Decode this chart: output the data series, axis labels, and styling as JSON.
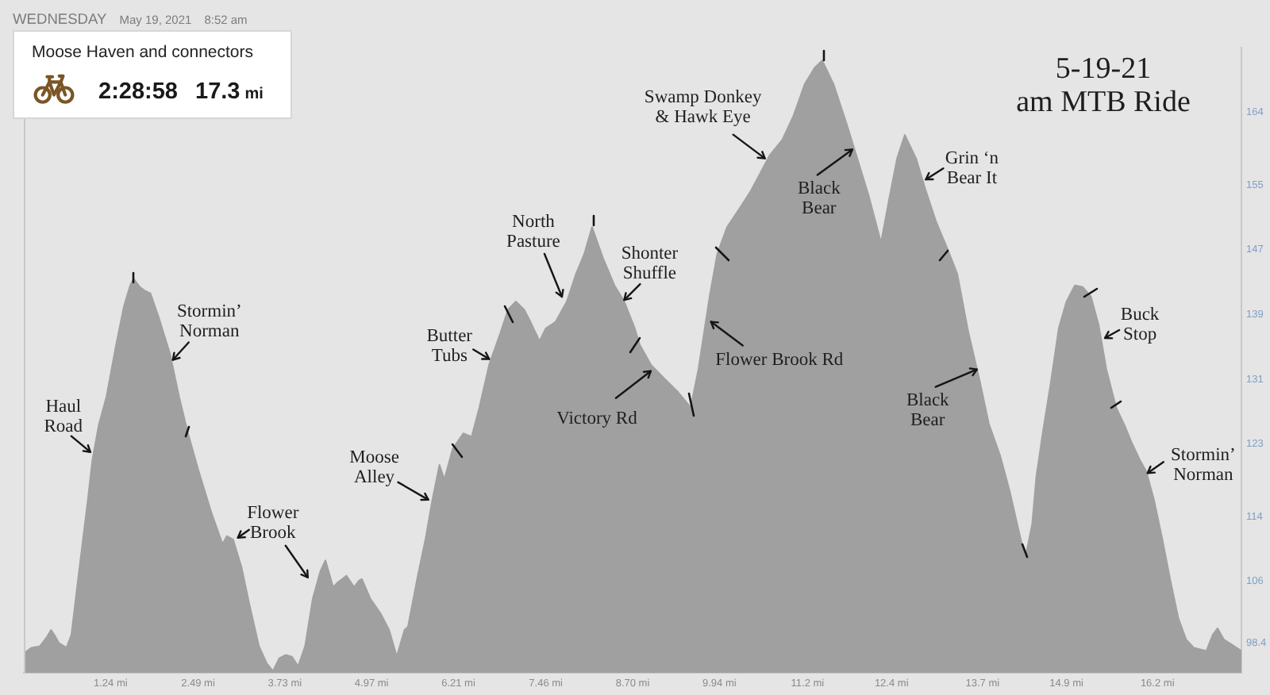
{
  "chart_data": {
    "type": "area",
    "title": "5-19-21",
    "subtitle": "am MTB Ride",
    "x": [
      0,
      0.11,
      0.23,
      0.32,
      0.39,
      0.45,
      0.5,
      0.61,
      0.68,
      0.79,
      0.91,
      0.98,
      1.07,
      1.18,
      1.32,
      1.43,
      1.52,
      1.57,
      1.66,
      1.72,
      1.81,
      1.93,
      2.09,
      2.22,
      2.34,
      2.5,
      2.68,
      2.84,
      2.9,
      2.99,
      3.11,
      3.22,
      3.36,
      3.47,
      3.56,
      3.65,
      3.74,
      3.83,
      3.92,
      4.02,
      4.13,
      4.24,
      4.31,
      4.42,
      4.49,
      4.61,
      4.72,
      4.79,
      4.83,
      4.95,
      5.1,
      5.22,
      5.33,
      5.44,
      5.49,
      5.63,
      5.74,
      5.83,
      5.94,
      6.01,
      6.13,
      6.28,
      6.4,
      6.51,
      6.65,
      6.81,
      6.92,
      7.03,
      7.15,
      7.24,
      7.37,
      7.46,
      7.6,
      7.76,
      7.89,
      8.01,
      8.12,
      8.28,
      8.44,
      8.58,
      8.73,
      8.8,
      8.96,
      9.14,
      9.35,
      9.53,
      9.64,
      9.8,
      9.91,
      10.05,
      10.25,
      10.39,
      10.55,
      10.66,
      10.84,
      11,
      11.16,
      11.3,
      11.41,
      11.57,
      11.75,
      11.91,
      12.07,
      12.25,
      12.36,
      12.48,
      12.59,
      12.75,
      12.89,
      13.04,
      13.2,
      13.34,
      13.5,
      13.66,
      13.79,
      13.95,
      14.09,
      14.22,
      14.31,
      14.41,
      14.47,
      14.56,
      14.68,
      14.79,
      14.9,
      15.02,
      15.13,
      15.25,
      15.36,
      15.47,
      15.61,
      15.73,
      15.84,
      15.95,
      16.04,
      16.15,
      16.27,
      16.38,
      16.5,
      16.61,
      16.72,
      16.9,
      16.99,
      17.06,
      17.15,
      17.26,
      17.4
    ],
    "values": [
      97.1,
      97.8,
      98,
      99,
      100,
      99.2,
      98.4,
      97.8,
      99.4,
      107.3,
      115.7,
      121,
      125.3,
      128.8,
      135.3,
      140,
      142.6,
      143.4,
      142.4,
      142,
      141.6,
      138.6,
      134.1,
      128.8,
      124.5,
      119.6,
      114.5,
      110.6,
      111.6,
      111.2,
      107.8,
      103.3,
      98,
      95.9,
      94.9,
      96.5,
      96.9,
      96.7,
      95.5,
      98,
      103.9,
      107.3,
      108.6,
      105.3,
      105.9,
      106.7,
      105.3,
      106.1,
      106.3,
      103.9,
      102,
      100,
      96.7,
      100,
      100.4,
      106.7,
      111.2,
      115.7,
      120.4,
      118.6,
      122.4,
      124.3,
      123.9,
      127.5,
      132.8,
      136.7,
      139.6,
      140.6,
      139.6,
      138.1,
      135.7,
      137.3,
      138.1,
      140.6,
      144,
      146.5,
      149.8,
      145.9,
      142.6,
      140.6,
      137.3,
      135.3,
      132.8,
      131.2,
      129.4,
      127.5,
      132.2,
      141.2,
      146.5,
      149.8,
      152.4,
      154.3,
      156.9,
      158.7,
      160.6,
      163.6,
      167.5,
      169.5,
      170.4,
      167.5,
      162.8,
      158.3,
      153.8,
      147.9,
      153,
      158.3,
      161.2,
      158.3,
      154.3,
      150.4,
      147.1,
      144,
      136.7,
      130.8,
      125.5,
      121.6,
      117.1,
      112.2,
      108.8,
      113.1,
      119,
      124.3,
      130.8,
      137.3,
      140.6,
      142.6,
      142.4,
      141.2,
      137.7,
      132.2,
      127.5,
      125.3,
      123,
      121,
      119.6,
      116.1,
      111.2,
      106.3,
      101.4,
      98.8,
      97.8,
      97.4,
      99.4,
      100.2,
      98.8,
      98.2,
      97.4
    ],
    "color": "#a0a0a0",
    "marker": "none",
    "xlim": [
      0,
      17.4
    ],
    "xticks": [
      {
        "value": 1.24,
        "label": "1.24 mi"
      },
      {
        "value": 2.49,
        "label": "2.49 mi"
      },
      {
        "value": 3.73,
        "label": "3.73 mi"
      },
      {
        "value": 4.97,
        "label": "4.97 mi"
      },
      {
        "value": 6.21,
        "label": "6.21 mi"
      },
      {
        "value": 7.46,
        "label": "7.46 mi"
      },
      {
        "value": 8.7,
        "label": "8.70 mi"
      },
      {
        "value": 9.94,
        "label": "9.94 mi"
      },
      {
        "value": 11.2,
        "label": "11.2 mi"
      },
      {
        "value": 12.4,
        "label": "12.4 mi"
      },
      {
        "value": 13.7,
        "label": "13.7 mi"
      },
      {
        "value": 14.9,
        "label": "14.9 mi"
      },
      {
        "value": 16.2,
        "label": "16.2 mi"
      }
    ],
    "ylim": [
      94.7,
      172
    ],
    "yticks": [
      98.4,
      106,
      114,
      123,
      131,
      139,
      147,
      155,
      164
    ],
    "annotations": [
      "WEDNESDAY",
      "May 19, 2021",
      "8:52 am",
      "Moose Haven and connectors",
      "2:28:58",
      "17.3 mi",
      {
        "text": "Haul Road",
        "x": 0.95,
        "y": 122
      },
      {
        "text": "Stormin’ Norman",
        "x": 2.13,
        "y": 133.4
      },
      {
        "text": "Flower Brook",
        "x": 3.06,
        "y": 111.4
      },
      {
        "text": "Moose Alley",
        "x": 5.78,
        "y": 116.1
      },
      {
        "text": "Butter Tubs",
        "x": 6.65,
        "y": 133.5
      },
      {
        "text": "North Pasture",
        "x": 7.69,
        "y": 141.2
      },
      {
        "text": "Shonter Shuffle",
        "x": 8.58,
        "y": 140.8
      },
      {
        "text": "Victory Rd",
        "x": 8.96,
        "y": 132
      },
      {
        "text": "Flower Brook Rd",
        "x": 9.82,
        "y": 138.1
      },
      {
        "text": "Swamp Donkey & Hawk Eye",
        "x": 10.59,
        "y": 158.3
      },
      {
        "text": "Black Bear",
        "x": 11.84,
        "y": 159.4
      },
      {
        "text": "Grin ‘n Bear It",
        "x": 12.89,
        "y": 155.7
      },
      {
        "text": "Black Bear",
        "x": 13.62,
        "y": 132.2
      },
      {
        "text": "Buck Stop",
        "x": 15.45,
        "y": 136.1
      },
      {
        "text": "Stormin’ Norman",
        "x": 16.06,
        "y": 119.4
      }
    ]
  }
}
